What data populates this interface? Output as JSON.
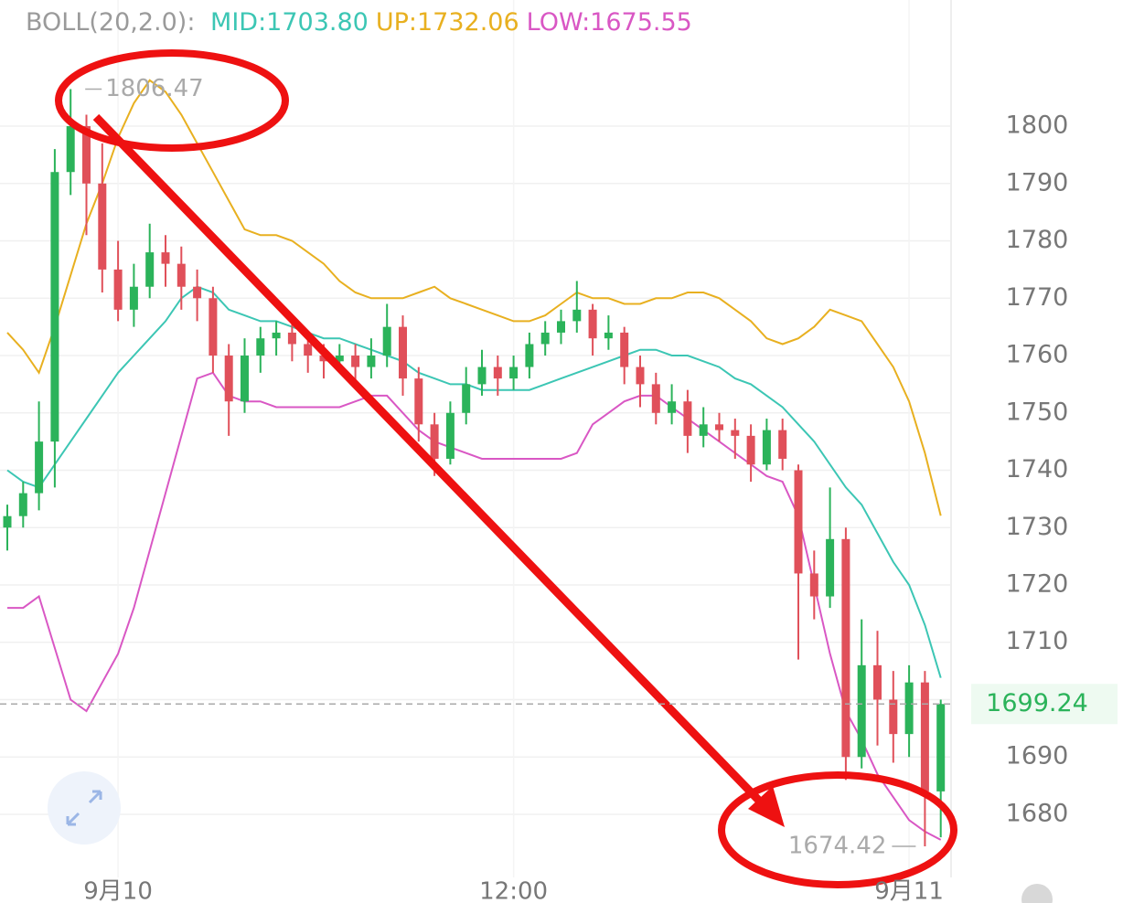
{
  "chart_data": {
    "type": "candlestick",
    "indicator": "BOLL(20,2.0):",
    "ylim": [
      1669,
      1822
    ],
    "yticks": [
      1680,
      1690,
      1700,
      1710,
      1720,
      1730,
      1740,
      1750,
      1760,
      1770,
      1780,
      1790,
      1800
    ],
    "xticks": [
      {
        "value": 7,
        "label": "9月10"
      },
      {
        "value": 32,
        "label": "12:00"
      },
      {
        "value": 57,
        "label": "9月11"
      }
    ],
    "grid": true,
    "up_color": "#2bb35a",
    "down_color": "#e0505a",
    "last_price": 1699.24,
    "high_marker": 1806.47,
    "low_marker": 1674.42,
    "ohlc": [
      [
        1730,
        1734,
        1726,
        1732
      ],
      [
        1732,
        1738,
        1730,
        1736
      ],
      [
        1736,
        1752,
        1733,
        1745
      ],
      [
        1745,
        1796,
        1737,
        1792
      ],
      [
        1792,
        1806.47,
        1788,
        1800
      ],
      [
        1800,
        1802,
        1781,
        1790
      ],
      [
        1790,
        1797,
        1771,
        1775
      ],
      [
        1775,
        1780,
        1766,
        1768
      ],
      [
        1768,
        1776,
        1765,
        1772
      ],
      [
        1772,
        1783,
        1770,
        1778
      ],
      [
        1778,
        1781,
        1772,
        1776
      ],
      [
        1776,
        1779,
        1768,
        1772
      ],
      [
        1772,
        1775,
        1766,
        1770
      ],
      [
        1770,
        1772,
        1757,
        1760
      ],
      [
        1760,
        1762,
        1746,
        1752
      ],
      [
        1752,
        1763,
        1750,
        1760
      ],
      [
        1760,
        1765,
        1757,
        1763
      ],
      [
        1763,
        1766,
        1760,
        1764
      ],
      [
        1764,
        1766,
        1759,
        1762
      ],
      [
        1762,
        1764,
        1757,
        1760
      ],
      [
        1760,
        1762,
        1756,
        1759
      ],
      [
        1759,
        1762,
        1757,
        1760
      ],
      [
        1760,
        1762,
        1755,
        1758
      ],
      [
        1758,
        1763,
        1756,
        1760
      ],
      [
        1760,
        1769,
        1758,
        1765
      ],
      [
        1765,
        1767,
        1753,
        1756
      ],
      [
        1756,
        1758,
        1745,
        1748
      ],
      [
        1748,
        1750,
        1739,
        1742
      ],
      [
        1742,
        1752,
        1741,
        1750
      ],
      [
        1750,
        1758,
        1748,
        1755
      ],
      [
        1755,
        1761,
        1753,
        1758
      ],
      [
        1758,
        1760,
        1753,
        1756
      ],
      [
        1756,
        1760,
        1754,
        1758
      ],
      [
        1758,
        1764,
        1756,
        1762
      ],
      [
        1762,
        1766,
        1760,
        1764
      ],
      [
        1764,
        1768,
        1762,
        1766
      ],
      [
        1766,
        1773,
        1764,
        1768
      ],
      [
        1768,
        1769,
        1760,
        1763
      ],
      [
        1763,
        1767,
        1761,
        1764
      ],
      [
        1764,
        1765,
        1755,
        1758
      ],
      [
        1758,
        1760,
        1751,
        1755
      ],
      [
        1755,
        1757,
        1748,
        1750
      ],
      [
        1750,
        1755,
        1748,
        1752
      ],
      [
        1752,
        1754,
        1743,
        1746
      ],
      [
        1746,
        1751,
        1744,
        1748
      ],
      [
        1748,
        1750,
        1745,
        1747
      ],
      [
        1747,
        1749,
        1742,
        1746
      ],
      [
        1746,
        1748,
        1738,
        1741
      ],
      [
        1741,
        1749,
        1740,
        1747
      ],
      [
        1747,
        1749,
        1740,
        1742
      ],
      [
        1740,
        1741,
        1707,
        1722
      ],
      [
        1722,
        1726,
        1714,
        1718
      ],
      [
        1718,
        1737,
        1716,
        1728
      ],
      [
        1728,
        1730,
        1686,
        1690
      ],
      [
        1690,
        1714,
        1688,
        1706
      ],
      [
        1706,
        1712,
        1692,
        1700
      ],
      [
        1700,
        1705,
        1689,
        1694
      ],
      [
        1694,
        1706,
        1690,
        1703
      ],
      [
        1703,
        1705,
        1674.42,
        1684
      ],
      [
        1684,
        1700,
        1676,
        1699.24
      ]
    ],
    "series": [
      {
        "name": "MID:1703.80",
        "color": "#3cc6b4",
        "values": [
          1740,
          1738,
          1737,
          1741,
          1745,
          1749,
          1753,
          1757,
          1760,
          1763,
          1766,
          1770,
          1772,
          1771,
          1768,
          1767,
          1766,
          1766,
          1765,
          1764,
          1763,
          1763,
          1762,
          1761,
          1760,
          1759,
          1757,
          1756,
          1755,
          1755,
          1754,
          1754,
          1754,
          1754,
          1755,
          1756,
          1757,
          1758,
          1759,
          1760,
          1761,
          1761,
          1760,
          1760,
          1759,
          1758,
          1756,
          1755,
          1753,
          1751,
          1748,
          1745,
          1741,
          1737,
          1734,
          1729,
          1724,
          1720,
          1713,
          1703.8
        ]
      },
      {
        "name": "UP:1732.06",
        "color": "#e8b020",
        "values": [
          1764,
          1761,
          1757,
          1765,
          1774,
          1783,
          1790,
          1798,
          1804,
          1808,
          1806,
          1802,
          1797,
          1792,
          1787,
          1782,
          1781,
          1781,
          1780,
          1778,
          1776,
          1773,
          1771,
          1770,
          1770,
          1770,
          1771,
          1772,
          1770,
          1769,
          1768,
          1767,
          1766,
          1766,
          1767,
          1769,
          1771,
          1770,
          1770,
          1769,
          1769,
          1770,
          1770,
          1771,
          1771,
          1770,
          1768,
          1766,
          1763,
          1762,
          1763,
          1765,
          1768,
          1767,
          1766,
          1762,
          1758,
          1752,
          1743,
          1732.06
        ]
      },
      {
        "name": "LOW:1675.55",
        "color": "#d957c4",
        "values": [
          1716,
          1716,
          1718,
          1709,
          1700,
          1698,
          1703,
          1708,
          1716,
          1726,
          1736,
          1746,
          1756,
          1757,
          1753,
          1752,
          1752,
          1751,
          1751,
          1751,
          1751,
          1751,
          1752,
          1753,
          1753,
          1750,
          1747,
          1745,
          1744,
          1743,
          1742,
          1742,
          1742,
          1742,
          1742,
          1742,
          1743,
          1748,
          1750,
          1752,
          1753,
          1753,
          1751,
          1749,
          1747,
          1745,
          1743,
          1741,
          1739,
          1738,
          1732,
          1720,
          1708,
          1698,
          1693,
          1687,
          1683,
          1679,
          1677,
          1675.55
        ]
      }
    ]
  }
}
